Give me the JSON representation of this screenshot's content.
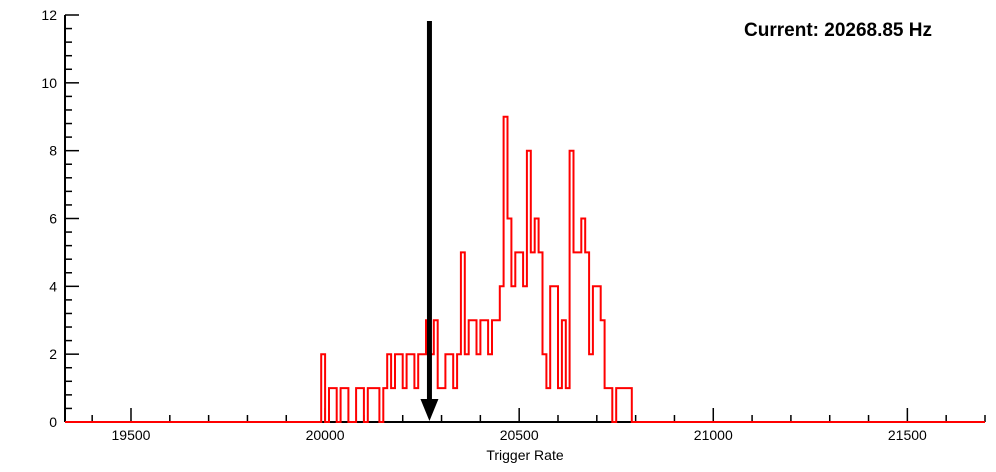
{
  "colors": {
    "histogram": "#ff0000",
    "axis": "#000000",
    "arrow": "#000000",
    "background": "#ffffff",
    "text": "#000000"
  },
  "annotation": {
    "current_label": "Current: 20268.85 Hz",
    "current_value_hz": 20268.85
  },
  "chart_data": {
    "type": "bar",
    "style": "step-histogram",
    "title": "",
    "xlabel": "Trigger Rate",
    "ylabel": "",
    "xlim": [
      19330,
      21700
    ],
    "ylim": [
      0,
      12
    ],
    "x_ticks_major": [
      19500,
      20000,
      20500,
      21000,
      21500
    ],
    "x_tick_labels": [
      "19500",
      "20000",
      "20500",
      "21000",
      "21500"
    ],
    "x_minor_step": 100,
    "y_ticks_major": [
      0,
      2,
      4,
      6,
      8,
      10,
      12
    ],
    "y_tick_labels": [
      "0",
      "2",
      "4",
      "6",
      "8",
      "10",
      "12"
    ],
    "y_minor_step": 0.4,
    "grid": false,
    "legend": "none",
    "bin_start": 19980,
    "bin_width": 10,
    "bins": [
      0,
      2,
      0,
      1,
      1,
      0,
      1,
      1,
      0,
      0,
      1,
      1,
      0,
      1,
      1,
      1,
      0,
      1,
      2,
      1,
      2,
      2,
      1,
      2,
      2,
      1,
      2,
      2,
      3,
      2,
      3,
      1,
      1,
      2,
      2,
      1,
      2,
      5,
      2,
      3,
      3,
      2,
      3,
      3,
      2,
      3,
      3,
      4,
      9,
      6,
      4,
      5,
      5,
      4,
      8,
      5,
      6,
      5,
      2,
      1,
      4,
      4,
      1,
      3,
      1,
      8,
      5,
      5,
      6,
      5,
      2,
      4,
      4,
      3,
      1,
      1,
      0,
      1,
      1,
      1,
      1,
      0
    ],
    "arrow_x": 20268.85,
    "series_color": "#ff0000"
  }
}
